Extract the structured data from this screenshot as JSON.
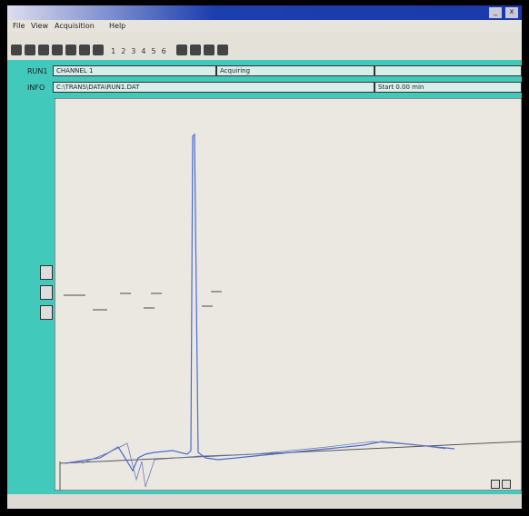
{
  "title_bar": {
    "buttons": [
      "_",
      "x"
    ]
  },
  "menu": [
    "File",
    "View",
    "Acquisition",
    "Help"
  ],
  "toolbar": {
    "numbers": [
      "1",
      "2",
      "3",
      "4",
      "5",
      "6"
    ]
  },
  "info": {
    "run_label": "RUN1",
    "run_value": "CHANNEL 1",
    "status": "Acquiring",
    "file_label": "INFO",
    "file_value": "C:\\TRANS\\DATA\\RUN1.DAT",
    "right_value": "Start 0.00 min"
  }
}
